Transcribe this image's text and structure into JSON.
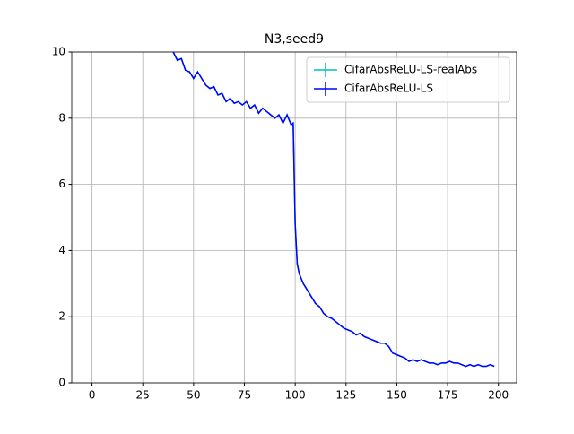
{
  "chart_data": {
    "type": "line",
    "title": "N3,seed9",
    "x": [
      40,
      42,
      44,
      46,
      48,
      50,
      52,
      54,
      56,
      58,
      60,
      62,
      64,
      66,
      68,
      70,
      72,
      74,
      76,
      78,
      80,
      82,
      84,
      86,
      88,
      90,
      92,
      94,
      96,
      98,
      99,
      100,
      101,
      102,
      104,
      106,
      108,
      110,
      112,
      114,
      116,
      118,
      120,
      122,
      124,
      126,
      128,
      130,
      132,
      134,
      136,
      138,
      140,
      142,
      144,
      146,
      148,
      150,
      152,
      154,
      156,
      158,
      160,
      162,
      164,
      166,
      168,
      170,
      172,
      174,
      176,
      178,
      180,
      182,
      184,
      186,
      188,
      190,
      192,
      194,
      196,
      198
    ],
    "series": [
      {
        "name": "CifarAbsReLU-LS-realAbs",
        "color": "#00bfbf",
        "values": [
          10.0,
          9.75,
          9.8,
          9.45,
          9.4,
          9.2,
          9.4,
          9.2,
          9.0,
          8.9,
          8.95,
          8.7,
          8.75,
          8.5,
          8.6,
          8.45,
          8.5,
          8.4,
          8.5,
          8.3,
          8.4,
          8.15,
          8.3,
          8.2,
          8.1,
          8.0,
          8.1,
          7.85,
          8.1,
          7.8,
          7.85,
          4.8,
          3.6,
          3.3,
          3.0,
          2.8,
          2.6,
          2.4,
          2.3,
          2.1,
          2.0,
          1.95,
          1.85,
          1.75,
          1.65,
          1.6,
          1.55,
          1.45,
          1.5,
          1.4,
          1.35,
          1.3,
          1.25,
          1.2,
          1.2,
          1.1,
          0.9,
          0.85,
          0.8,
          0.75,
          0.65,
          0.7,
          0.65,
          0.7,
          0.65,
          0.6,
          0.6,
          0.55,
          0.6,
          0.6,
          0.65,
          0.6,
          0.6,
          0.55,
          0.5,
          0.55,
          0.5,
          0.55,
          0.5,
          0.5,
          0.55,
          0.5
        ]
      },
      {
        "name": "CifarAbsReLU-LS",
        "color": "#0000ff",
        "values": [
          10.0,
          9.75,
          9.8,
          9.45,
          9.4,
          9.2,
          9.4,
          9.2,
          9.0,
          8.9,
          8.95,
          8.7,
          8.75,
          8.5,
          8.6,
          8.45,
          8.5,
          8.4,
          8.5,
          8.3,
          8.4,
          8.15,
          8.3,
          8.2,
          8.1,
          8.0,
          8.1,
          7.85,
          8.1,
          7.8,
          7.85,
          4.8,
          3.6,
          3.3,
          3.0,
          2.8,
          2.6,
          2.4,
          2.3,
          2.1,
          2.0,
          1.95,
          1.85,
          1.75,
          1.65,
          1.6,
          1.55,
          1.45,
          1.5,
          1.4,
          1.35,
          1.3,
          1.25,
          1.2,
          1.2,
          1.1,
          0.9,
          0.85,
          0.8,
          0.75,
          0.65,
          0.7,
          0.65,
          0.7,
          0.65,
          0.6,
          0.6,
          0.55,
          0.6,
          0.6,
          0.65,
          0.6,
          0.6,
          0.55,
          0.5,
          0.55,
          0.5,
          0.55,
          0.5,
          0.5,
          0.55,
          0.5
        ]
      }
    ],
    "xlim": [
      -9.95,
      208.95
    ],
    "xticks": [
      0,
      25,
      50,
      75,
      100,
      125,
      150,
      175,
      200
    ],
    "ylim": [
      0,
      10
    ],
    "yticks": [
      0,
      2,
      4,
      6,
      8,
      10
    ],
    "grid": true,
    "legend": "upper right"
  }
}
